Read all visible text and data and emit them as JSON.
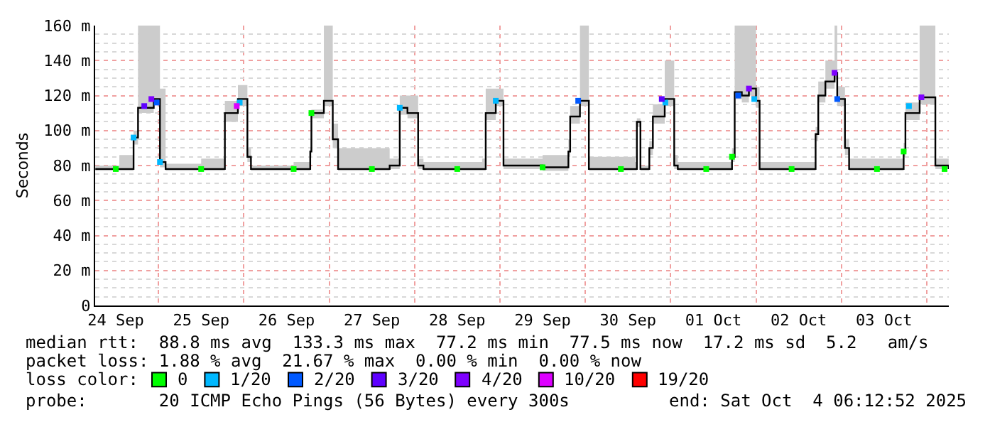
{
  "chart_data": {
    "type": "step",
    "ylabel": "Seconds",
    "legend_title": "loss color:",
    "legend": "bottom",
    "grid": true,
    "xlim": [
      "2025-09-24T06:12",
      "2025-10-04T06:12"
    ],
    "xticks": [
      {
        "value": "2025-09-24T12:00",
        "label": "24 Sep"
      },
      {
        "value": "2025-09-25T12:00",
        "label": "25 Sep"
      },
      {
        "value": "2025-09-26T12:00",
        "label": "26 Sep"
      },
      {
        "value": "2025-09-27T12:00",
        "label": "27 Sep"
      },
      {
        "value": "2025-09-28T12:00",
        "label": "28 Sep"
      },
      {
        "value": "2025-09-29T12:00",
        "label": "29 Sep"
      },
      {
        "value": "2025-09-30T12:00",
        "label": "30 Sep"
      },
      {
        "value": "2025-10-01T12:00",
        "label": "01 Oct"
      },
      {
        "value": "2025-10-02T12:00",
        "label": "02 Oct"
      },
      {
        "value": "2025-10-03T12:00",
        "label": "03 Oct"
      }
    ],
    "ylim": [
      0,
      160
    ],
    "yticks": [
      0,
      {
        "value": 20,
        "label": "20 m"
      },
      {
        "value": 40,
        "label": "40 m"
      },
      {
        "value": 60,
        "label": "60 m"
      },
      {
        "value": 80,
        "label": "80 m"
      },
      {
        "value": 100,
        "label": "100 m"
      },
      {
        "value": 120,
        "label": "120 m"
      },
      {
        "value": 140,
        "label": "140 m"
      },
      {
        "value": 160,
        "label": "160 m"
      }
    ],
    "x": [
      "2025-09-24T06:15",
      "2025-09-24T13:00",
      "2025-09-24T17:00",
      "2025-09-24T18:15",
      "2025-09-24T22:40",
      "2025-09-25T00:25",
      "2025-09-25T02:00",
      "2025-09-25T12:00",
      "2025-09-25T18:40",
      "2025-09-25T22:20",
      "2025-09-26T01:00",
      "2025-09-26T02:00",
      "2025-09-26T14:00",
      "2025-09-26T18:40",
      "2025-09-26T19:00",
      "2025-09-26T22:30",
      "2025-09-27T01:00",
      "2025-09-27T02:30",
      "2025-09-27T17:00",
      "2025-09-27T19:50",
      "2025-09-27T22:00",
      "2025-09-28T01:00",
      "2025-09-28T02:30",
      "2025-09-28T19:00",
      "2025-09-28T20:00",
      "2025-09-28T22:50",
      "2025-09-29T01:00",
      "2025-09-29T12:00",
      "2025-09-29T19:15",
      "2025-09-29T19:45",
      "2025-09-29T22:30",
      "2025-09-30T01:00",
      "2025-09-30T14:00",
      "2025-09-30T14:30",
      "2025-09-30T15:30",
      "2025-09-30T18:00",
      "2025-09-30T19:00",
      "2025-09-30T22:20",
      "2025-10-01T01:00",
      "2025-10-01T02:00",
      "2025-10-01T17:15",
      "2025-10-01T18:00",
      "2025-10-01T20:00",
      "2025-10-01T22:00",
      "2025-10-02T00:00",
      "2025-10-02T01:00",
      "2025-10-02T16:45",
      "2025-10-02T17:30",
      "2025-10-02T19:30",
      "2025-10-02T22:05",
      "2025-10-02T22:50",
      "2025-10-03T01:00",
      "2025-10-03T02:10",
      "2025-10-03T17:30",
      "2025-10-03T18:00",
      "2025-10-03T22:00",
      "2025-10-04T02:25",
      "2025-10-04T06:10"
    ],
    "series": [
      {
        "color": "#000000",
        "marker": "none",
        "values": [
          78,
          78,
          96,
          113,
          118,
          82,
          78,
          78,
          110,
          118,
          85,
          78,
          78,
          88,
          110,
          117,
          95,
          78,
          80,
          113,
          110,
          80,
          78,
          78,
          110,
          117,
          80,
          79,
          88,
          108,
          117,
          78,
          78,
          105,
          78,
          90,
          108,
          118,
          80,
          78,
          85,
          122,
          120,
          124,
          117,
          78,
          98,
          120,
          128,
          133,
          118,
          90,
          78,
          88,
          110,
          119,
          80,
          78
        ],
        "lower": [
          77,
          77,
          92,
          110,
          115,
          79,
          77,
          77,
          105,
          114,
          82,
          77,
          77,
          85,
          107,
          114,
          90,
          77,
          78,
          109,
          107,
          78,
          77,
          77,
          106,
          114,
          78,
          77,
          85,
          104,
          114,
          77,
          77,
          102,
          77,
          86,
          104,
          114,
          78,
          77,
          82,
          118,
          116,
          120,
          113,
          77,
          94,
          116,
          124,
          129,
          114,
          86,
          77,
          85,
          106,
          115,
          78,
          77
        ],
        "upper": [
          80,
          86,
          100,
          160,
          160,
          124,
          81,
          84,
          117,
          126,
          90,
          80,
          82,
          90,
          112,
          160,
          104,
          90,
          84,
          120,
          120,
          84,
          82,
          84,
          124,
          124,
          84,
          86,
          95,
          114,
          160,
          85,
          82,
          107,
          80,
          94,
          115,
          140,
          86,
          82,
          90,
          160,
          160,
          160,
          125,
          82,
          102,
          128,
          140,
          160,
          125,
          95,
          84,
          93,
          116,
          160,
          84,
          86
        ]
      },
      {
        "type": "scatter",
        "marker": "square",
        "name": "0",
        "color": "#00ff00",
        "x": [
          "2025-09-24T12:00",
          "2025-09-25T12:00",
          "2025-09-26T14:00",
          "2025-09-27T12:00",
          "2025-09-28T12:00",
          "2025-09-29T12:00",
          "2025-09-30T10:00",
          "2025-10-01T10:00",
          "2025-10-02T10:00",
          "2025-10-03T10:00",
          "2025-10-04T05:00",
          "2025-09-26T19:00",
          "2025-10-01T17:15",
          "2025-10-03T17:30"
        ],
        "values": [
          78,
          78,
          78,
          78,
          78,
          79,
          78,
          78,
          78,
          78,
          78,
          110,
          85,
          88
        ]
      },
      {
        "type": "scatter",
        "marker": "square",
        "name": "1/20",
        "color": "#00b8ff",
        "x": [
          "2025-09-24T17:00",
          "2025-09-25T00:25",
          "2025-09-25T22:50",
          "2025-09-27T19:50",
          "2025-09-28T22:50",
          "2025-09-30T22:30",
          "2025-10-01T23:30",
          "2025-10-03T19:00"
        ],
        "values": [
          96,
          82,
          116,
          113,
          117,
          116,
          118,
          114
        ]
      },
      {
        "type": "scatter",
        "marker": "square",
        "name": "2/20",
        "color": "#0059ff",
        "x": [
          "2025-09-24T23:30",
          "2025-09-29T22:00",
          "2025-10-01T19:00",
          "2025-10-02T22:50"
        ],
        "values": [
          116,
          117,
          120,
          118
        ]
      },
      {
        "type": "scatter",
        "marker": "square",
        "name": "3/20",
        "color": "#5e00ff",
        "x": [
          "2025-09-24T20:00",
          "2025-09-30T21:30"
        ],
        "values": [
          114,
          118
        ]
      },
      {
        "type": "scatter",
        "marker": "square",
        "name": "4/20",
        "color": "#7e00ff",
        "x": [
          "2025-09-24T22:00",
          "2025-10-01T22:00",
          "2025-10-02T22:05",
          "2025-10-03T22:30"
        ],
        "values": [
          118,
          124,
          133,
          119
        ]
      },
      {
        "type": "scatter",
        "marker": "square",
        "name": "10/20",
        "color": "#dd00ff",
        "x": [
          "2025-09-25T22:00"
        ],
        "values": [
          114
        ]
      },
      {
        "type": "scatter",
        "marker": "square",
        "name": "19/20",
        "color": "#ff0000",
        "values": [
          null,
          null,
          null,
          null,
          null,
          null,
          null,
          null,
          null,
          null,
          null,
          null,
          null,
          null,
          null,
          null,
          null,
          null,
          null,
          null,
          null,
          null,
          null,
          null,
          null,
          null,
          null,
          null,
          null,
          null,
          null,
          null,
          null,
          null,
          null,
          null,
          null,
          null,
          null,
          null,
          null,
          null,
          null,
          null,
          null,
          null,
          null,
          null,
          null,
          null,
          null,
          null,
          null,
          null,
          null,
          null,
          null,
          null
        ]
      }
    ],
    "annotations": [
      "median rtt:  88.8 ms avg  133.3 ms max  77.2 ms min  77.5 ms now  17.2 ms sd  5.2   am/s",
      "packet loss: 1.88 % avg  21.67 % max  0.00 % min  0.00 % now",
      "probe:       20 ICMP Echo Pings (56 Bytes) every 300s",
      "end: Sat Oct  4 06:12:52 2025"
    ]
  }
}
